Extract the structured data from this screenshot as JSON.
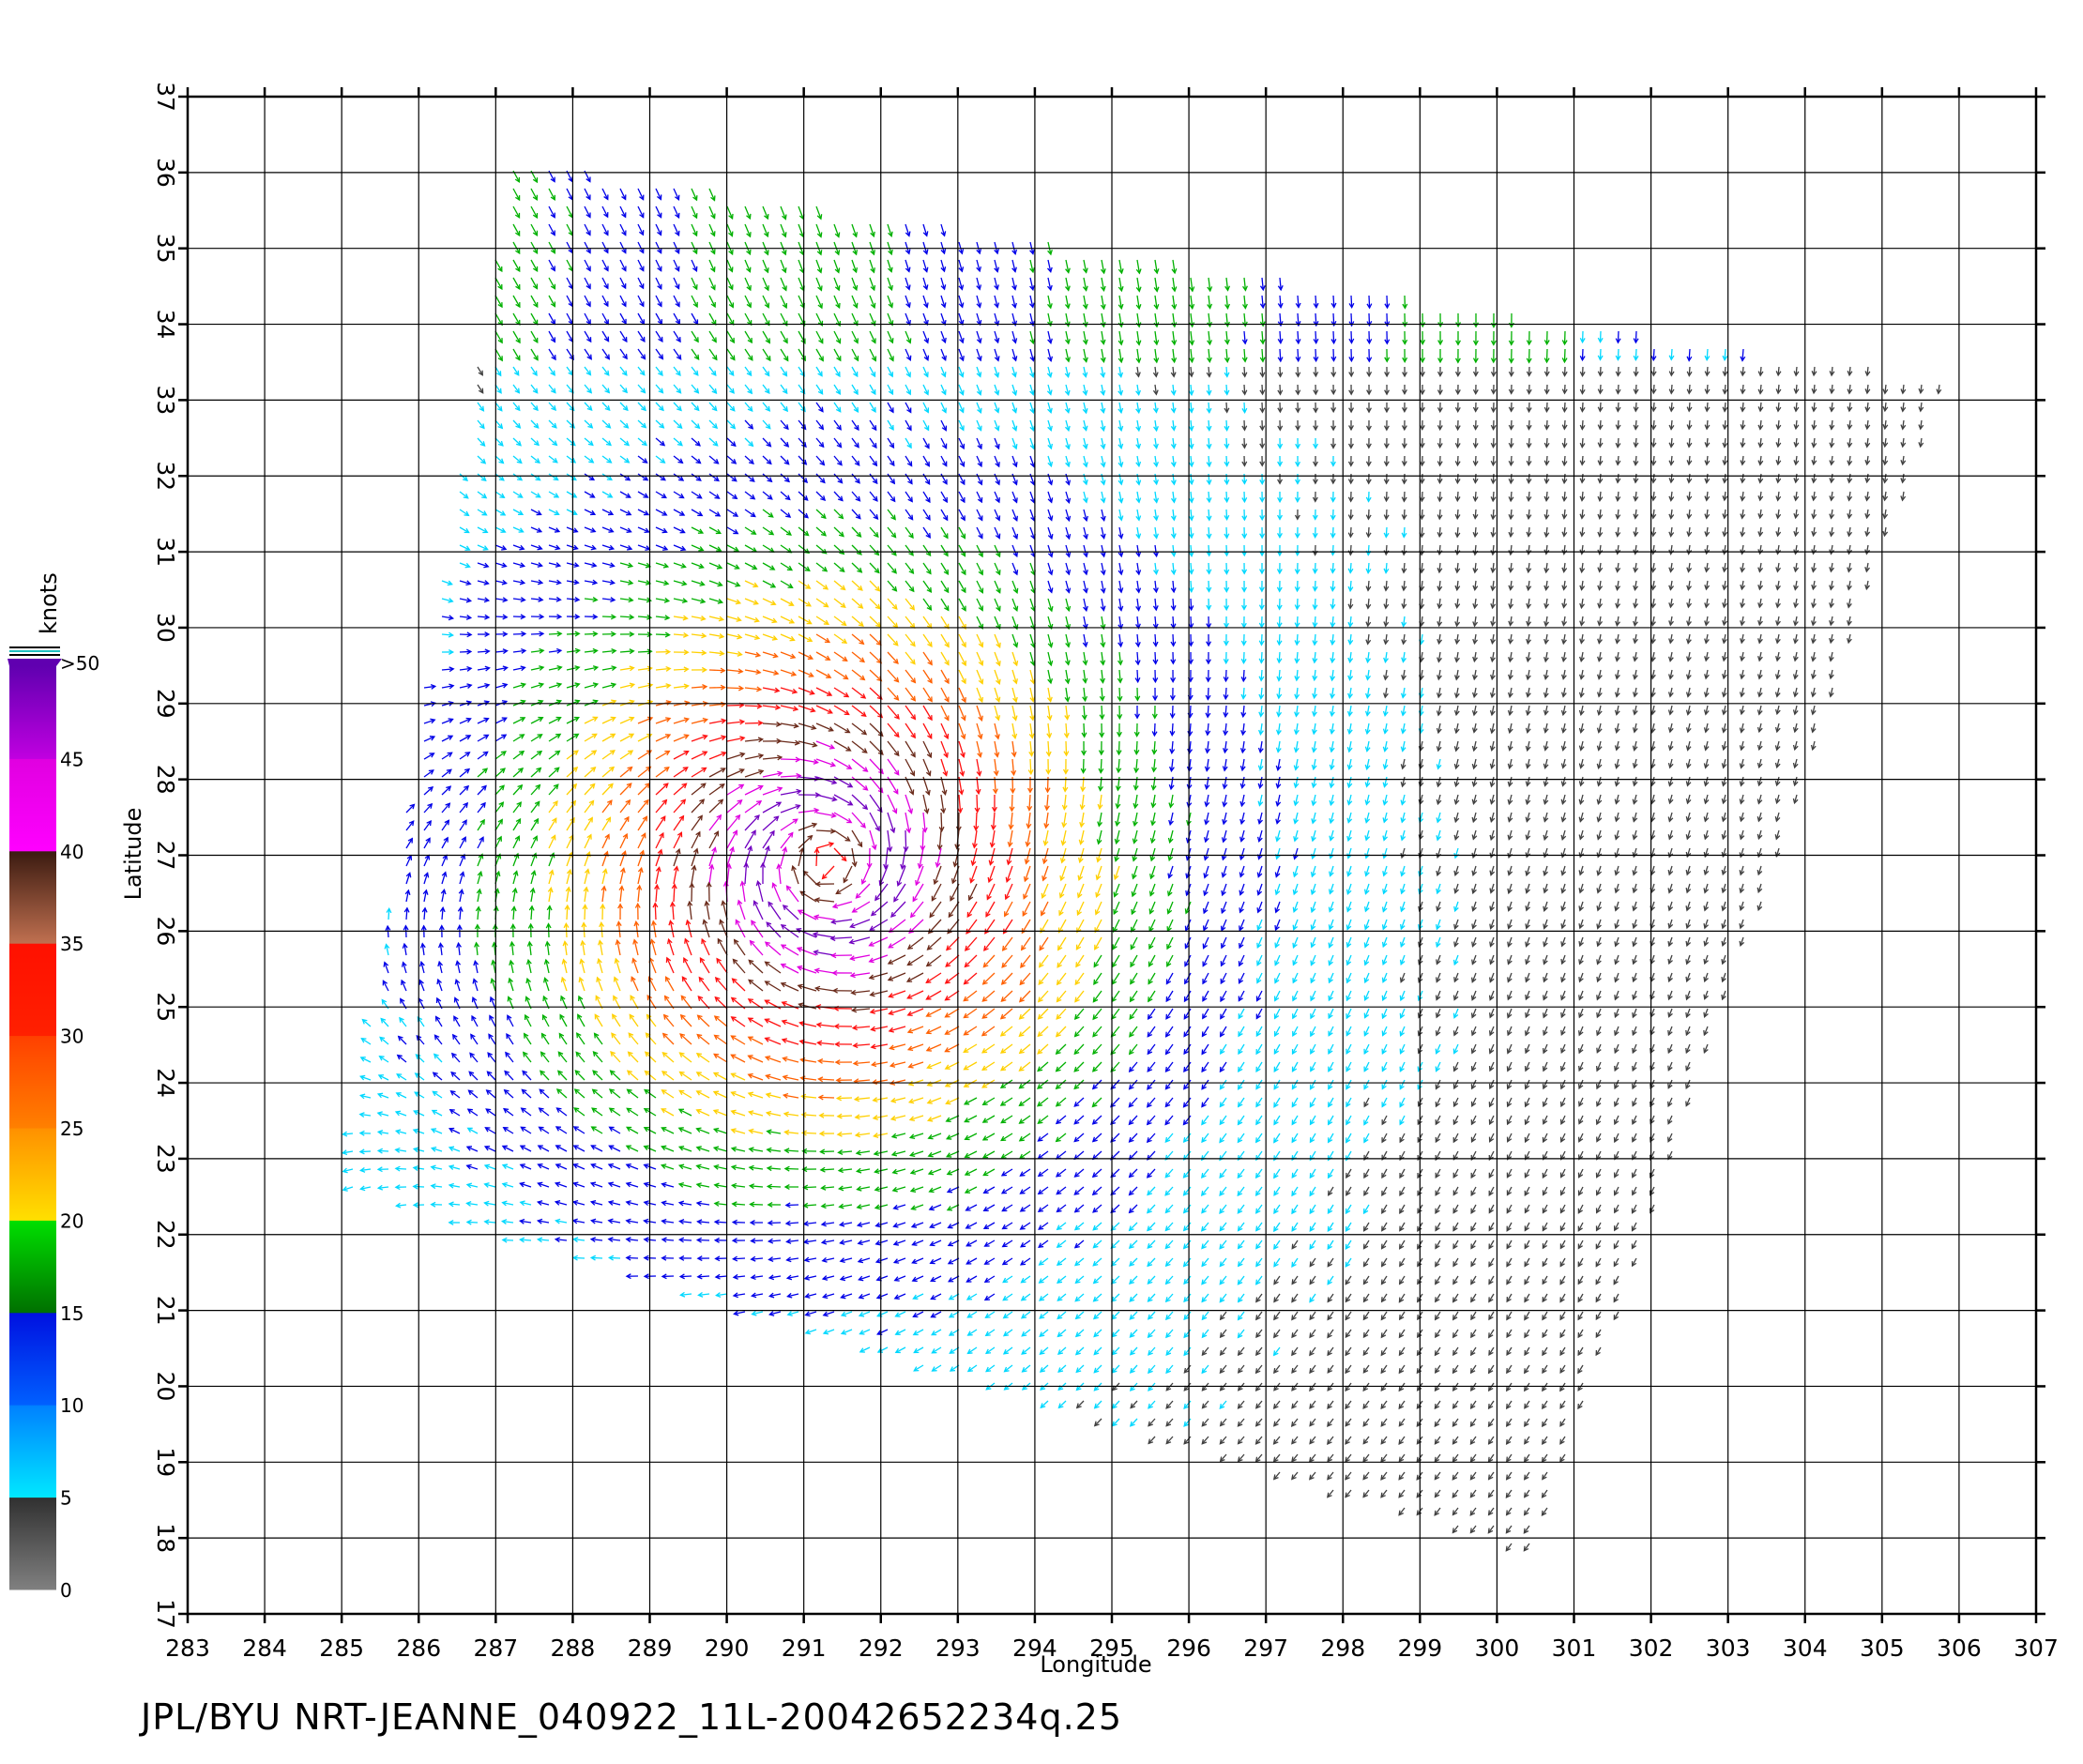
{
  "chart_data": {
    "type": "vector-field",
    "xlabel": "Longitude",
    "ylabel": "Latitude",
    "xlim": [
      283,
      307
    ],
    "ylim": [
      17,
      37
    ],
    "xticks": [
      "283",
      "284",
      "285",
      "286",
      "287",
      "288",
      "289",
      "290",
      "291",
      "292",
      "293",
      "294",
      "295",
      "296",
      "297",
      "298",
      "299",
      "300",
      "301",
      "302",
      "303",
      "304",
      "305",
      "306",
      "307"
    ],
    "yticks": [
      "17",
      "18",
      "19",
      "20",
      "21",
      "22",
      "23",
      "24",
      "25",
      "26",
      "27",
      "28",
      "29",
      "30",
      "31",
      "32",
      "33",
      "34",
      "35",
      "36",
      "37"
    ],
    "grid": true,
    "colorbar": {
      "unit": "knots",
      "labels": [
        "0",
        "5",
        "10",
        "15",
        "20",
        "25",
        "30",
        "35",
        "40",
        "45",
        ">50"
      ],
      "bands": [
        {
          "from": 0,
          "to": 5,
          "colors": [
            "#808080",
            "#303030"
          ]
        },
        {
          "from": 5,
          "to": 10,
          "colors": [
            "#00e8ff",
            "#0080ff"
          ]
        },
        {
          "from": 10,
          "to": 15,
          "colors": [
            "#0060ff",
            "#0010e0"
          ]
        },
        {
          "from": 15,
          "to": 20,
          "colors": [
            "#007000",
            "#00e000"
          ]
        },
        {
          "from": 20,
          "to": 25,
          "colors": [
            "#ffe000",
            "#ff9000"
          ]
        },
        {
          "from": 25,
          "to": 30,
          "colors": [
            "#ff8000",
            "#ff4000"
          ]
        },
        {
          "from": 30,
          "to": 35,
          "colors": [
            "#ff2000",
            "#ff1000"
          ]
        },
        {
          "from": 35,
          "to": 40,
          "colors": [
            "#c07050",
            "#3a1a10"
          ]
        },
        {
          "from": 40,
          "to": 45,
          "colors": [
            "#ff00ff",
            "#e000e0"
          ]
        },
        {
          "from": 45,
          "to": 50,
          "colors": [
            "#c000e0",
            "#6000b0"
          ]
        }
      ]
    },
    "storm_center": {
      "lon": 291.3,
      "lat": 26.9
    },
    "swath_corners": [
      [
        287.2,
        36.2
      ],
      [
        305.8,
        33.3
      ],
      [
        300.5,
        17.8
      ],
      [
        285.0,
        22.6
      ]
    ],
    "speed_colors": {
      "calm": "#404040",
      "light": "#00d8ff",
      "moderate": "#0000e8",
      "fresh": "#00b000",
      "strong": "#ffd000",
      "gale": "#ff6000",
      "storm": "#ff1010",
      "severe": "#6a2a1a",
      "violent": "#e000e0",
      "extreme": "#7000c0"
    }
  },
  "caption": "JPL/BYU  NRT-JEANNE_040922_11L-20042652234q.25"
}
